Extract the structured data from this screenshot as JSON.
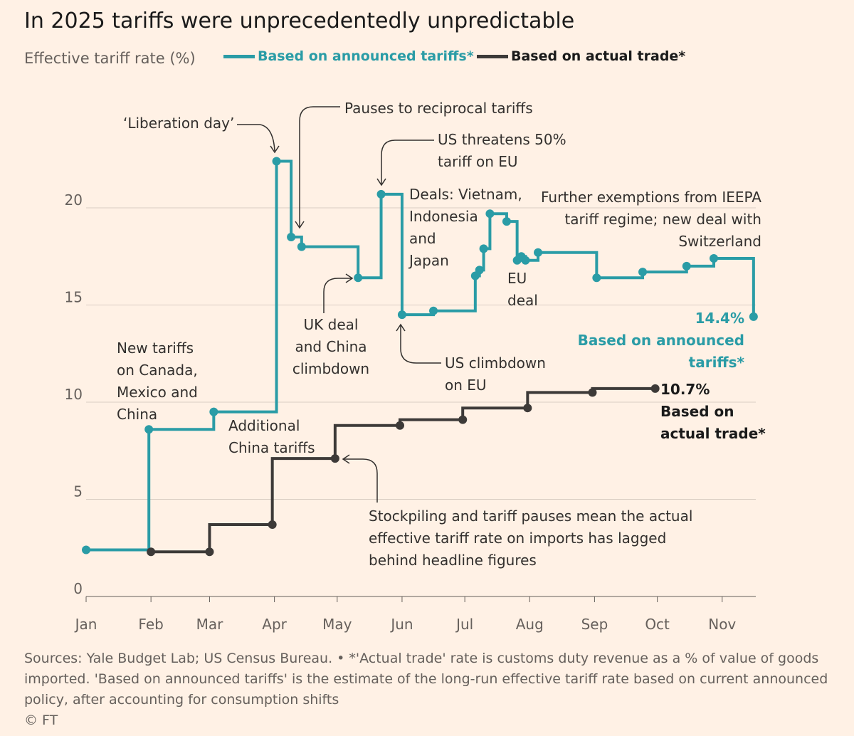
{
  "title": "In 2025 tariffs were unprecedentedly unpredictable",
  "colors": {
    "background": "#FFF1E5",
    "announced": "#2a9ca6",
    "actual": "#3d3a38",
    "grid": "#d9cdc3"
  },
  "chart_data": {
    "type": "line",
    "step": true,
    "title": "In 2025 tariffs were unprecedentedly unpredictable",
    "ylabel": "Effective tariff rate (%)",
    "ylim": [
      0,
      22.5
    ],
    "yticks": [
      0,
      5,
      10,
      15,
      20
    ],
    "xticks": [
      "Jan",
      "Feb",
      "Mar",
      "Apr",
      "May",
      "Jun",
      "Jul",
      "Aug",
      "Sep",
      "Oct",
      "Nov"
    ],
    "xtick_dates": [
      "2025-01-01",
      "2025-02-01",
      "2025-03-01",
      "2025-04-01",
      "2025-05-01",
      "2025-06-01",
      "2025-07-01",
      "2025-08-01",
      "2025-09-01",
      "2025-10-01",
      "2025-11-01"
    ],
    "grid": true,
    "legend_position": "top",
    "series": [
      {
        "name": "Based on announced tariffs*",
        "color": "#2a9ca6",
        "x": [
          "2025-01-01",
          "2025-01-31",
          "2025-03-03",
          "2025-04-02",
          "2025-04-09",
          "2025-04-14",
          "2025-05-11",
          "2025-05-22",
          "2025-06-01",
          "2025-06-16",
          "2025-07-06",
          "2025-07-08",
          "2025-07-10",
          "2025-07-13",
          "2025-07-21",
          "2025-07-26",
          "2025-07-28",
          "2025-07-30",
          "2025-08-05",
          "2025-09-02",
          "2025-09-24",
          "2025-10-15",
          "2025-10-28",
          "2025-11-16"
        ],
        "y": [
          2.4,
          8.6,
          9.5,
          22.4,
          18.5,
          18.0,
          16.4,
          20.7,
          14.5,
          14.7,
          16.5,
          16.8,
          17.9,
          19.7,
          19.3,
          17.3,
          17.5,
          17.3,
          17.7,
          16.4,
          16.7,
          17.0,
          17.4,
          14.4
        ]
      },
      {
        "name": "Based on actual trade*",
        "color": "#3d3a38",
        "x": [
          "2025-02-01",
          "2025-03-01",
          "2025-03-31",
          "2025-04-30",
          "2025-05-31",
          "2025-06-30",
          "2025-07-31",
          "2025-08-31",
          "2025-09-30"
        ],
        "y": [
          2.3,
          2.3,
          3.7,
          7.1,
          8.8,
          9.1,
          9.7,
          10.5,
          10.7
        ]
      }
    ]
  },
  "legend": {
    "announced": "Based on announced tariffs*",
    "actual": "Based on actual trade*"
  },
  "annotations": {
    "liberation": "‘Liberation day’",
    "pauses": "Pauses to reciprocal tariffs",
    "threatens": "US threatens 50%\ntariff on EU",
    "deals": "Deals: Vietnam,\nIndonesia\nand\nJapan",
    "exemptions": "Further exemptions from IEEPA\ntariff regime; new deal with\nSwitzerland",
    "eu_deal": "EU\ndeal",
    "announced_value": "14.4%",
    "announced_label": "Based on announced\ntariffs*",
    "uk_deal": "UK deal\nand China\nclimbdown",
    "climbdown": "US climbdown\non EU",
    "new_tariffs": "New tariffs\non Canada,\nMexico and\nChina",
    "additional": "Additional\nChina tariffs",
    "actual_value": "10.7%",
    "actual_label": "Based on\nactual trade*",
    "stockpiling": "Stockpiling and tariff pauses mean the actual\neffective tariff rate on imports has lagged\nbehind headline figures"
  },
  "footer": {
    "sources": "Sources: Yale Budget Lab; US Census Bureau. • *'Actual trade' rate is customs duty revenue as a % of value of goods imported. 'Based on announced tariffs' is the estimate of the long-run effective tariff rate based on current announced policy, after accounting for consumption shifts",
    "copyright": "© FT"
  }
}
